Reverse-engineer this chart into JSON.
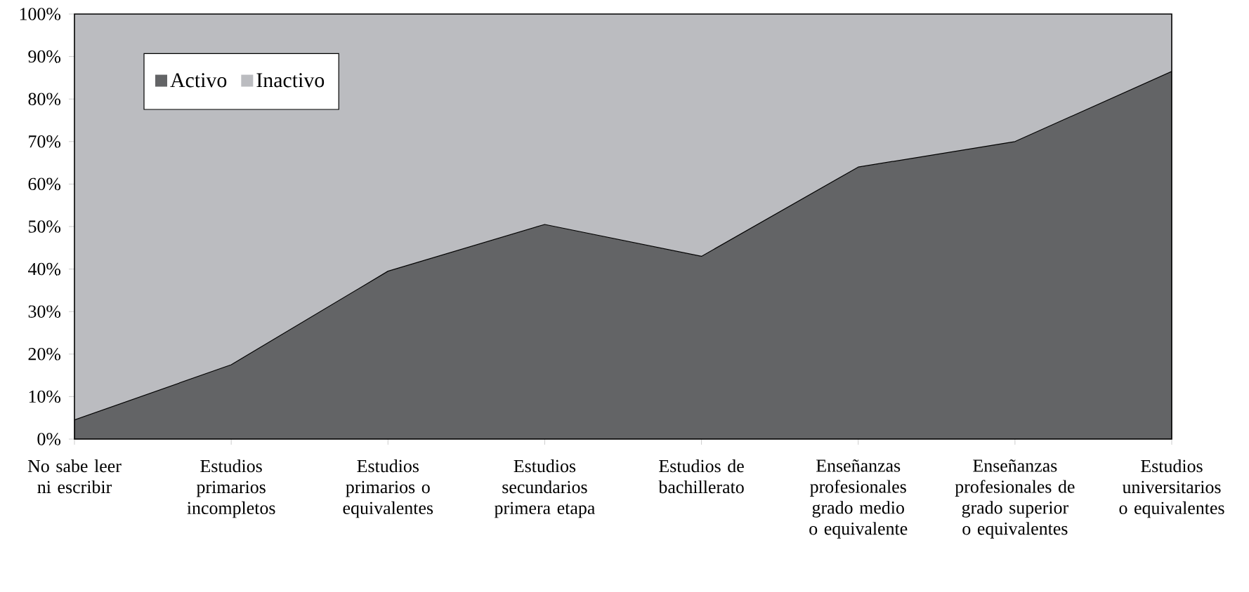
{
  "chart_data": {
    "type": "area",
    "stacked": true,
    "legend": "top left",
    "categories": [
      "No sabe leer ni escribir",
      "Estudios primarios incompletos",
      "Estudios primarios o equivalentes",
      "Estudios secundarios primera etapa",
      "Estudios de bachillerato",
      "Enseñanzas profesionales grado medio o equivalente",
      "Enseñanzas profesionales de grado superior o equivalentes",
      "Estudios universitarios o equivalentes"
    ],
    "series": [
      {
        "name": "Activo",
        "color": "#636466",
        "values": [
          4.5,
          17.5,
          39.5,
          50.5,
          43,
          64,
          70,
          86.5
        ]
      },
      {
        "name": "Inactivo",
        "color": "#bbbcc0",
        "values": [
          95.5,
          82.5,
          60.5,
          49.5,
          57,
          36,
          30,
          13.5
        ]
      }
    ],
    "ylim": [
      0,
      100
    ],
    "yticks": [
      {
        "value": 0,
        "label": "0%"
      },
      {
        "value": 10,
        "label": "10%"
      },
      {
        "value": 20,
        "label": "20%"
      },
      {
        "value": 30,
        "label": "30%"
      },
      {
        "value": 40,
        "label": "40%"
      },
      {
        "value": 50,
        "label": "50%"
      },
      {
        "value": 60,
        "label": "60%"
      },
      {
        "value": 70,
        "label": "70%"
      },
      {
        "value": 80,
        "label": "80%"
      },
      {
        "value": 90,
        "label": "90%"
      },
      {
        "value": 100,
        "label": "100%"
      }
    ]
  }
}
